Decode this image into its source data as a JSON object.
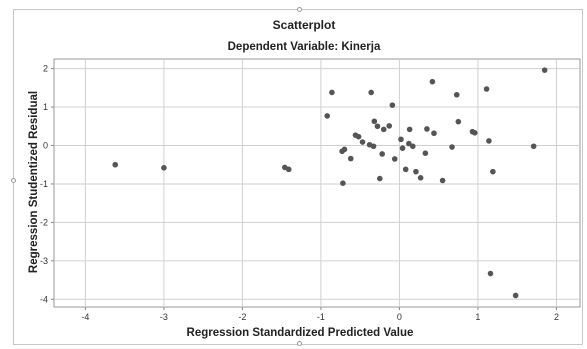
{
  "chart_data": {
    "type": "scatter",
    "title": "Scatterplot",
    "subtitle": "Dependent Variable: Kinerja",
    "xlabel": "Regression Standardized Predicted Value",
    "ylabel": "Regression Studentized Residual",
    "xlim": [
      -4.4,
      2.3
    ],
    "ylim": [
      -4.2,
      2.25
    ],
    "xticks": [
      "-4",
      "-3",
      "-2",
      "-1",
      "0",
      "1",
      "2"
    ],
    "yticks": [
      "2",
      "1",
      "0",
      "-1",
      "-2",
      "-3",
      "-4"
    ],
    "grid": true,
    "marker_color": "#555555",
    "points": [
      [
        -3.62,
        -0.5
      ],
      [
        -3.0,
        -0.58
      ],
      [
        -1.46,
        -0.57
      ],
      [
        -1.41,
        -0.62
      ],
      [
        -0.92,
        0.77
      ],
      [
        -0.86,
        1.38
      ],
      [
        -0.73,
        -0.15
      ],
      [
        -0.72,
        -0.98
      ],
      [
        -0.7,
        -0.1
      ],
      [
        -0.62,
        -0.34
      ],
      [
        -0.56,
        0.27
      ],
      [
        -0.52,
        0.23
      ],
      [
        -0.47,
        0.09
      ],
      [
        -0.38,
        0.02
      ],
      [
        -0.36,
        1.38
      ],
      [
        -0.33,
        -0.02
      ],
      [
        -0.32,
        0.63
      ],
      [
        -0.28,
        0.5
      ],
      [
        -0.25,
        -0.86
      ],
      [
        -0.22,
        -0.22
      ],
      [
        -0.2,
        0.42
      ],
      [
        -0.13,
        0.51
      ],
      [
        -0.09,
        1.05
      ],
      [
        -0.06,
        -0.35
      ],
      [
        0.02,
        0.16
      ],
      [
        0.04,
        -0.07
      ],
      [
        0.08,
        -0.62
      ],
      [
        0.12,
        0.05
      ],
      [
        0.13,
        0.42
      ],
      [
        0.17,
        -0.02
      ],
      [
        0.21,
        -0.68
      ],
      [
        0.27,
        -0.84
      ],
      [
        0.33,
        -0.2
      ],
      [
        0.35,
        0.43
      ],
      [
        0.42,
        1.66
      ],
      [
        0.44,
        0.32
      ],
      [
        0.55,
        -0.91
      ],
      [
        0.67,
        -0.04
      ],
      [
        0.73,
        1.32
      ],
      [
        0.75,
        0.62
      ],
      [
        0.93,
        0.36
      ],
      [
        0.96,
        0.33
      ],
      [
        1.11,
        1.47
      ],
      [
        1.14,
        0.12
      ],
      [
        1.16,
        -3.33
      ],
      [
        1.19,
        -0.68
      ],
      [
        1.48,
        -3.9
      ],
      [
        1.71,
        -0.02
      ],
      [
        1.85,
        1.96
      ]
    ]
  }
}
